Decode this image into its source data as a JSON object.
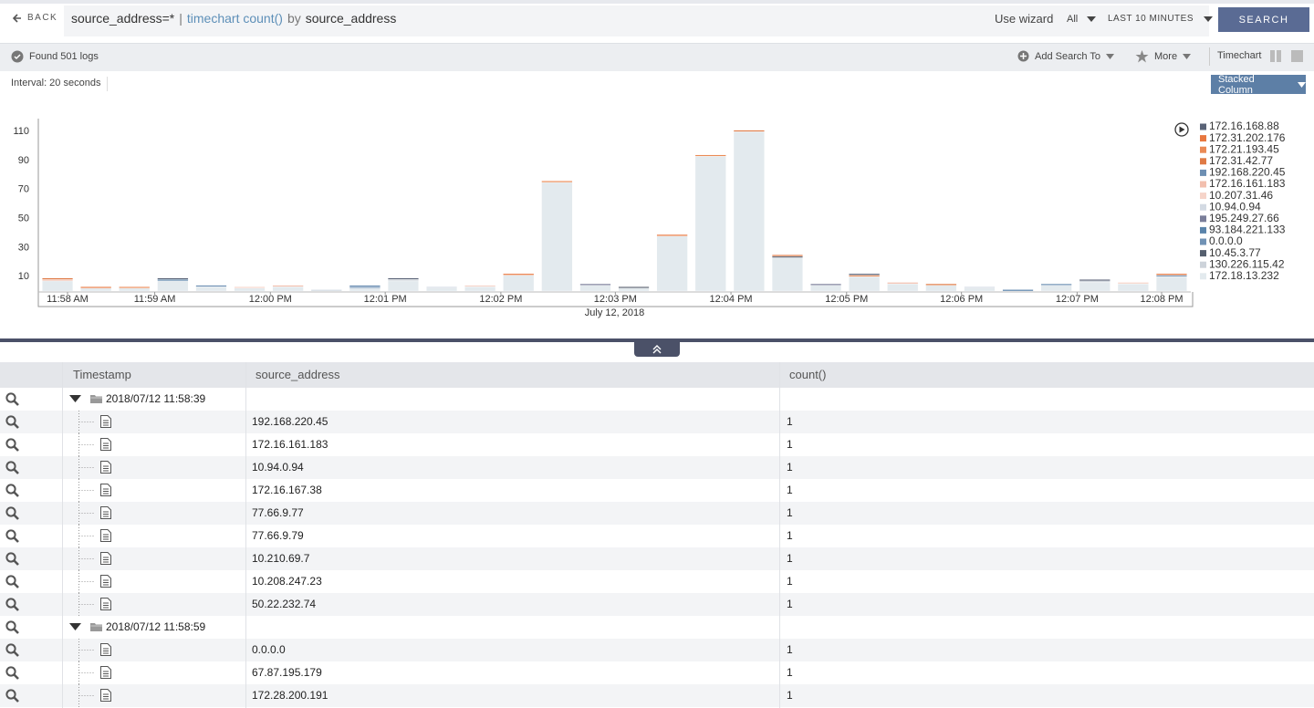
{
  "toolbar": {
    "back": "BACK",
    "query": [
      "source_address=*",
      "|",
      "timechart count()",
      "by",
      "source_address"
    ],
    "use_wizard": "Use wizard",
    "scope": "All",
    "time_range": "LAST 10 MINUTES",
    "search": "SEARCH"
  },
  "status": {
    "found": "Found 501 logs",
    "add_search_to": "Add Search To",
    "more": "More",
    "view": "Timechart"
  },
  "interval": "Interval: 20 seconds",
  "chart_style": "Stacked Column",
  "chart_data": {
    "type": "bar",
    "stacked": true,
    "xlabel": "July 12, 2018",
    "x": [
      0.5,
      1.5,
      2.5,
      3.5,
      4.5,
      5.5,
      6.5,
      7.5,
      8.5,
      9.5,
      10.5,
      11.5,
      12.5,
      13.5,
      14.5,
      15.5,
      16.5,
      17.5,
      18.5,
      19.5,
      20.5,
      21.5,
      22.5,
      23.5,
      24.5,
      25.5,
      26.5,
      27.5,
      28.5,
      29.5
    ],
    "xlim": [
      0,
      30
    ],
    "xticks": [
      {
        "value": 0.76,
        "label": "11:58 AM"
      },
      {
        "value": 3.03,
        "label": "11:59 AM"
      },
      {
        "value": 6.04,
        "label": "12:00 PM"
      },
      {
        "value": 9.03,
        "label": "12:01 PM"
      },
      {
        "value": 12.04,
        "label": "12:02 PM"
      },
      {
        "value": 15.02,
        "label": "12:03 PM"
      },
      {
        "value": 18.03,
        "label": "12:04 PM"
      },
      {
        "value": 21.04,
        "label": "12:05 PM"
      },
      {
        "value": 24.03,
        "label": "12:06 PM"
      },
      {
        "value": 27.04,
        "label": "12:07 PM"
      },
      {
        "value": 29.24,
        "label": "12:08 PM"
      }
    ],
    "ylim": [
      0,
      119
    ],
    "yticks": [
      10,
      30,
      50,
      70,
      90,
      110
    ],
    "grid": false,
    "legend": "right",
    "series": [
      {
        "name": "172.16.168.88",
        "color": "#5a6377",
        "values": [
          0,
          0,
          0,
          1,
          0,
          0,
          0,
          0,
          0,
          1,
          0,
          0,
          0,
          0,
          0,
          0,
          0,
          0,
          0,
          0,
          0,
          1,
          0,
          0,
          0,
          0,
          0,
          1,
          0,
          0
        ]
      },
      {
        "name": "172.31.202.176",
        "color": "#e8773f",
        "values": [
          0,
          1,
          0,
          0,
          0,
          0,
          0,
          0,
          0,
          0,
          0,
          0,
          1,
          0,
          0,
          0,
          1,
          0,
          0,
          0,
          0,
          0,
          0,
          0,
          0,
          0,
          0,
          0,
          0,
          1
        ]
      },
      {
        "name": "172.21.193.45",
        "color": "#ea8a55",
        "values": [
          0,
          0,
          1,
          0,
          0,
          0,
          0,
          0,
          0,
          0,
          0,
          0,
          0,
          1,
          0,
          0,
          0,
          1,
          0,
          0,
          0,
          1,
          0,
          0,
          0,
          0,
          0,
          0,
          0,
          0
        ]
      },
      {
        "name": "172.31.42.77",
        "color": "#df7a45",
        "values": [
          1,
          0,
          0,
          0,
          0,
          0,
          0,
          0,
          0,
          0,
          0,
          0,
          0,
          0,
          0,
          0,
          0,
          0,
          1,
          1,
          0,
          0,
          0,
          1,
          0,
          0,
          0,
          0,
          0,
          0
        ]
      },
      {
        "name": "192.168.220.45",
        "color": "#6d8fb3",
        "values": [
          0,
          0,
          0,
          0,
          1,
          0,
          0,
          0,
          1,
          0,
          0,
          0,
          0,
          0,
          0,
          0,
          0,
          0,
          0,
          0,
          0,
          0,
          0,
          0,
          0,
          0,
          1,
          0,
          0,
          0
        ]
      },
      {
        "name": "172.16.161.183",
        "color": "#f2bfae",
        "values": [
          1,
          0,
          0,
          0,
          0,
          0,
          1,
          0,
          0,
          0,
          0,
          0,
          0,
          0,
          0,
          0,
          0,
          0,
          0,
          0,
          0,
          0,
          1,
          0,
          0,
          0,
          0,
          0,
          0,
          0
        ]
      },
      {
        "name": "10.207.31.46",
        "color": "#f6d4c9",
        "values": [
          0,
          0,
          0,
          0,
          0,
          1,
          0,
          0,
          0,
          0,
          0,
          1,
          0,
          0,
          0,
          0,
          0,
          0,
          0,
          0,
          0,
          0,
          0,
          0,
          0,
          0,
          0,
          0,
          1,
          0
        ]
      },
      {
        "name": "10.94.0.94",
        "color": "#d3dae3",
        "values": [
          0,
          0,
          0,
          0,
          0,
          0,
          0,
          1,
          0,
          0,
          1,
          0,
          0,
          0,
          0,
          0,
          0,
          0,
          0,
          0,
          0,
          0,
          0,
          0,
          1,
          0,
          0,
          0,
          0,
          0
        ]
      },
      {
        "name": "195.249.27.66",
        "color": "#7a7e9a",
        "values": [
          0,
          0,
          0,
          0,
          0,
          0,
          0,
          0,
          0,
          0,
          0,
          0,
          0,
          0,
          1,
          0,
          0,
          0,
          0,
          0,
          1,
          0,
          0,
          0,
          0,
          0,
          0,
          0,
          0,
          0
        ]
      },
      {
        "name": "93.184.221.133",
        "color": "#5a84ab",
        "values": [
          0,
          0,
          0,
          1,
          0,
          0,
          0,
          0,
          0,
          0,
          0,
          0,
          0,
          0,
          0,
          0,
          0,
          0,
          0,
          0,
          0,
          0,
          0,
          0,
          0,
          1,
          0,
          0,
          0,
          0
        ]
      },
      {
        "name": "0.0.0.0",
        "color": "#7092b5",
        "values": [
          0,
          0,
          0,
          0,
          0,
          0,
          0,
          0,
          1,
          0,
          0,
          0,
          0,
          0,
          0,
          0,
          0,
          0,
          0,
          0,
          0,
          0,
          0,
          0,
          0,
          0,
          0,
          0,
          0,
          1
        ]
      },
      {
        "name": "10.45.3.77",
        "color": "#555f6e",
        "values": [
          0,
          0,
          0,
          0,
          0,
          0,
          0,
          0,
          0,
          0,
          0,
          0,
          0,
          0,
          0,
          1,
          0,
          0,
          0,
          1,
          0,
          0,
          0,
          0,
          0,
          0,
          0,
          0,
          0,
          0
        ]
      },
      {
        "name": "130.226.115.42",
        "color": "#cdd3da",
        "values": [
          0,
          0,
          0,
          0,
          0,
          0,
          0,
          0,
          0,
          1,
          0,
          0,
          0,
          0,
          0,
          0,
          0,
          0,
          0,
          0,
          0,
          0,
          0,
          0,
          0,
          0,
          0,
          1,
          0,
          0
        ]
      },
      {
        "name": "172.18.13.232",
        "color": "#e3eaee",
        "values": [
          7,
          2,
          2,
          7,
          3,
          2,
          3,
          0,
          2,
          7,
          2,
          3,
          11,
          75,
          4,
          2,
          38,
          93,
          110,
          23,
          4,
          10,
          5,
          4,
          2,
          0,
          4,
          6,
          5,
          10
        ]
      }
    ]
  },
  "table": {
    "columns": [
      "Timestamp",
      "source_address",
      "count()"
    ],
    "rows": [
      {
        "timestamp": "2018/07/12 11:58:39"
      },
      {
        "source_address": "192.168.220.45",
        "count": 1
      },
      {
        "source_address": "172.16.161.183",
        "count": 1
      },
      {
        "source_address": "10.94.0.94",
        "count": 1
      },
      {
        "source_address": "172.16.167.38",
        "count": 1
      },
      {
        "source_address": "77.66.9.77",
        "count": 1
      },
      {
        "source_address": "77.66.9.79",
        "count": 1
      },
      {
        "source_address": "10.210.69.7",
        "count": 1
      },
      {
        "source_address": "10.208.247.23",
        "count": 1
      },
      {
        "source_address": "50.22.232.74",
        "count": 1
      },
      {
        "timestamp": "2018/07/12 11:58:59"
      },
      {
        "source_address": "0.0.0.0",
        "count": 1
      },
      {
        "source_address": "67.87.195.179",
        "count": 1
      },
      {
        "source_address": "172.28.200.191",
        "count": 1
      }
    ]
  }
}
